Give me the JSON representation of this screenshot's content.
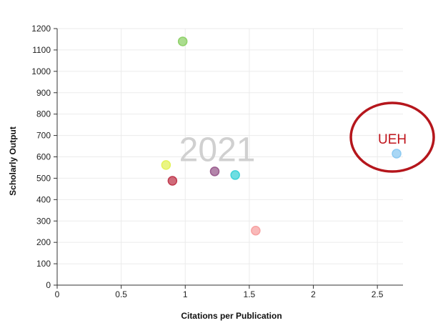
{
  "chart_data": {
    "type": "scatter",
    "title": "",
    "xlabel": "Citations per Publication",
    "ylabel": "Scholarly Output",
    "xlim": [
      0,
      2.7
    ],
    "ylim": [
      0,
      1200
    ],
    "x_ticks": [
      0,
      0.5,
      1,
      1.5,
      2,
      2.5
    ],
    "x_tick_labels": [
      "0",
      "0.5",
      "1",
      "1.5",
      "2",
      "2.5"
    ],
    "y_ticks": [
      0,
      100,
      200,
      300,
      400,
      500,
      600,
      700,
      800,
      900,
      1000,
      1100,
      1200
    ],
    "y_tick_labels": [
      "0",
      "100",
      "200",
      "300",
      "400",
      "500",
      "600",
      "700",
      "800",
      "900",
      "1000",
      "1100",
      "1200"
    ],
    "grid": true,
    "watermark": "2021",
    "points": [
      {
        "x": 0.98,
        "y": 1140,
        "color": "#8fd16a"
      },
      {
        "x": 0.85,
        "y": 562,
        "color": "#e3f25a"
      },
      {
        "x": 0.9,
        "y": 488,
        "color": "#c0394d"
      },
      {
        "x": 1.23,
        "y": 532,
        "color": "#9a5c8e"
      },
      {
        "x": 1.39,
        "y": 515,
        "color": "#3fd3d8"
      },
      {
        "x": 1.55,
        "y": 255,
        "color": "#f7a1a1"
      },
      {
        "x": 2.65,
        "y": 615,
        "color": "#8ccaf2"
      }
    ],
    "annotation": {
      "text": "UEH",
      "target_point": 6,
      "color": "#c0141c"
    }
  }
}
